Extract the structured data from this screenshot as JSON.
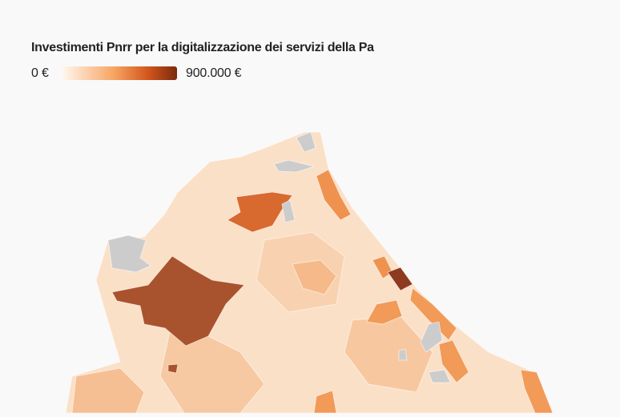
{
  "title": "Investimenti Pnrr per la digitalizzazione dei servizi della Pa",
  "legend": {
    "min_label": "0 €",
    "max_label": "900.000 €"
  }
}
